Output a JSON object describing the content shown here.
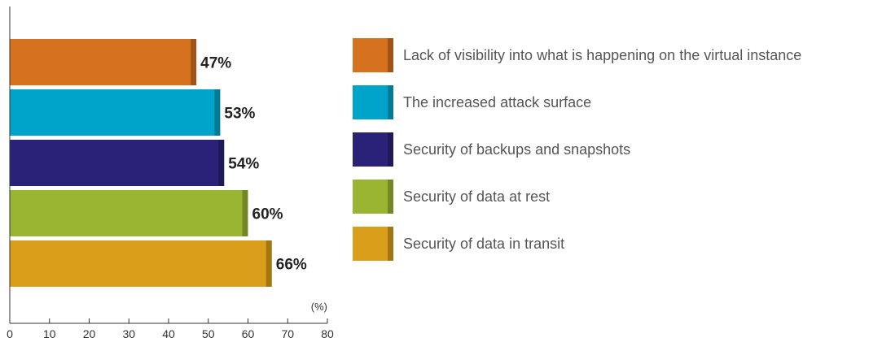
{
  "chart_data": {
    "type": "bar",
    "orientation": "horizontal",
    "title": "",
    "xlabel": "",
    "ylabel": "",
    "x_unit": "(%)",
    "xlim": [
      0,
      80
    ],
    "xticks": [
      0,
      10,
      20,
      30,
      40,
      50,
      60,
      70,
      80
    ],
    "grid": false,
    "legend_position": "right",
    "series": [
      {
        "name": "Security of data in transit",
        "value": 66,
        "label": "66%",
        "color": "#D99E1A"
      },
      {
        "name": "Security of data at rest",
        "value": 60,
        "label": "60%",
        "color": "#9AB531"
      },
      {
        "name": "Security of backups and snapshots",
        "value": 54,
        "label": "54%",
        "color": "#2A2278"
      },
      {
        "name": "The increased attack surface",
        "value": 53,
        "label": "53%",
        "color": "#00A4CA"
      },
      {
        "name": "Lack of visibility into what is happening on the virtual instance",
        "value": 47,
        "label": "47%",
        "color": "#D6721E"
      }
    ]
  }
}
